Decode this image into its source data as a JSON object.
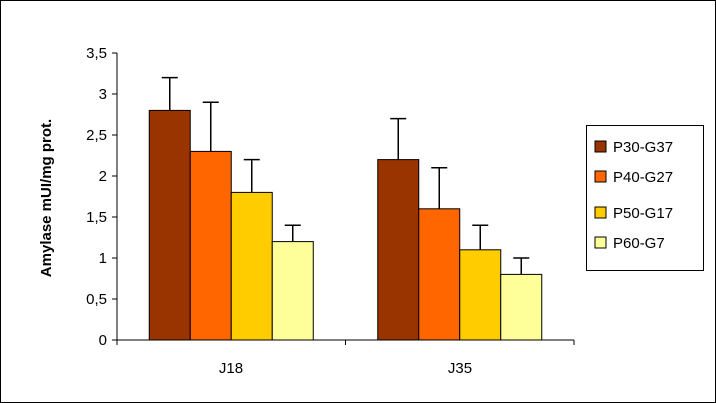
{
  "chart_data": {
    "type": "bar",
    "title": "",
    "xlabel": "",
    "ylabel": "Amylase mUI/mg prot.",
    "categories": [
      "J18",
      "J35"
    ],
    "ylim": [
      0,
      3.5
    ],
    "yticks": [
      "0",
      "0,5",
      "1",
      "1,5",
      "2",
      "2,5",
      "3",
      "3,5"
    ],
    "grid": false,
    "legend_position": "right",
    "error_bars": "upper",
    "series": [
      {
        "name": "P30-G37",
        "color": "#993300",
        "values": [
          2.8,
          2.2
        ],
        "errors": [
          0.4,
          0.5
        ]
      },
      {
        "name": "P40-G27",
        "color": "#ff6600",
        "values": [
          2.3,
          1.6
        ],
        "errors": [
          0.6,
          0.5
        ]
      },
      {
        "name": "P50-G17",
        "color": "#ffcc00",
        "values": [
          1.8,
          1.1
        ],
        "errors": [
          0.4,
          0.3
        ]
      },
      {
        "name": "P60-G7",
        "color": "#ffff99",
        "values": [
          1.2,
          0.8
        ],
        "errors": [
          0.2,
          0.2
        ]
      }
    ]
  }
}
